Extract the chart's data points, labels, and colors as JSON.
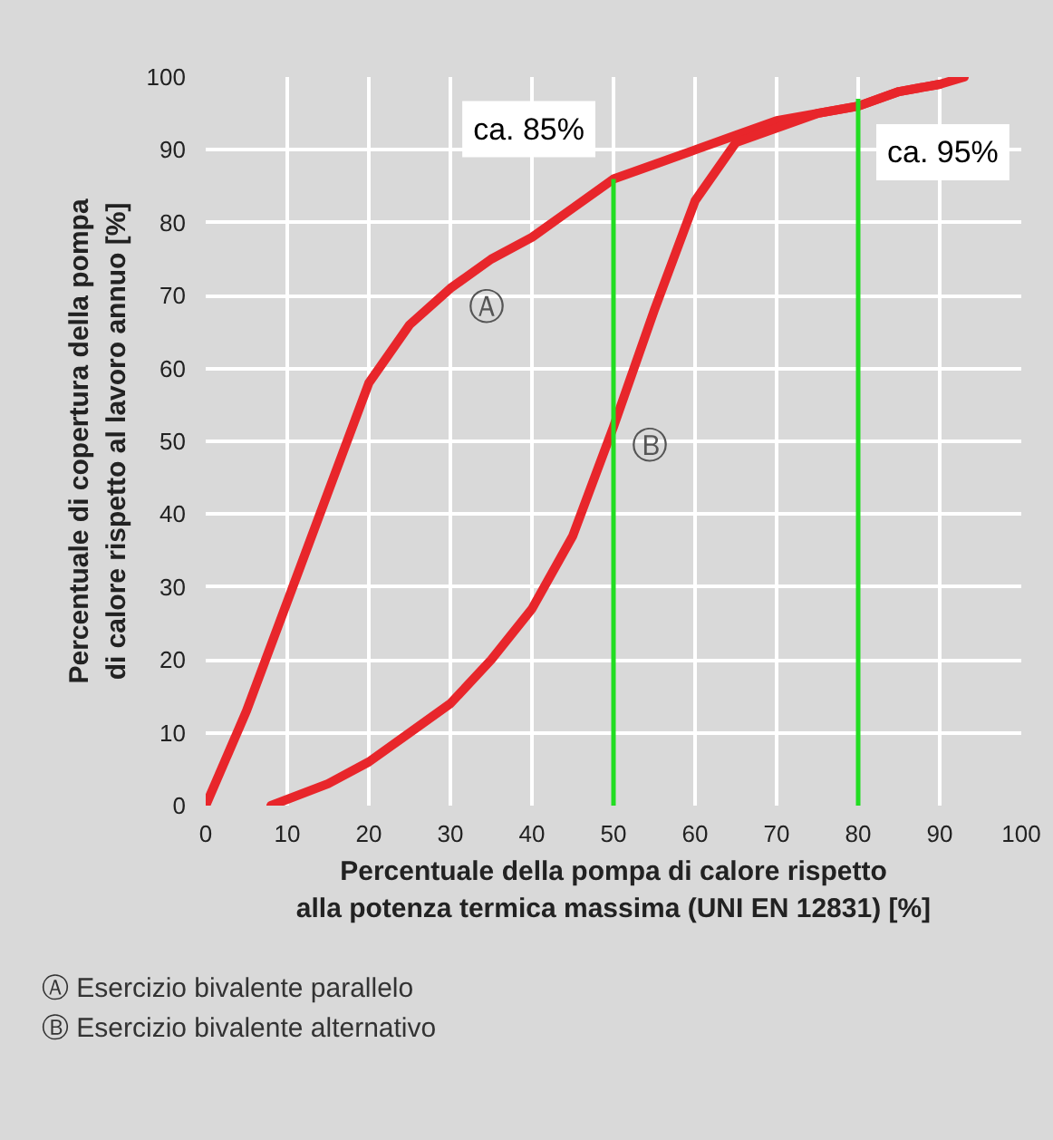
{
  "chart_data": {
    "type": "line",
    "xlabel": "Percentuale della pompa di calore rispetto\nalla potenza termica massima (UNI EN 12831) [%]",
    "ylabel": "Percentuale di copertura della pompa\ndi calore rispetto al lavoro annuo [%]",
    "xlim": [
      0,
      100
    ],
    "ylim": [
      0,
      100
    ],
    "xticks": [
      0,
      10,
      20,
      30,
      40,
      50,
      60,
      70,
      80,
      90,
      100
    ],
    "yticks": [
      0,
      10,
      20,
      30,
      40,
      50,
      60,
      70,
      80,
      90,
      100
    ],
    "grid": true,
    "line_style": "solid",
    "series": [
      {
        "color": "#e8262b",
        "x": [
          0,
          5,
          10,
          15,
          20,
          25,
          30,
          35,
          40,
          45,
          50,
          55,
          60,
          65,
          70,
          75,
          80,
          85,
          90,
          93
        ],
        "values": [
          0,
          13,
          28,
          43,
          58,
          66,
          71,
          75,
          78,
          82,
          86,
          88,
          90,
          92,
          94,
          95,
          96,
          98,
          99,
          100
        ]
      },
      {
        "color": "#e8262b",
        "x": [
          8,
          15,
          20,
          25,
          30,
          35,
          40,
          45,
          50,
          55,
          60,
          65,
          70,
          75,
          80,
          85,
          90
        ],
        "values": [
          0,
          3,
          6,
          10,
          14,
          20,
          27,
          37,
          52,
          68,
          83,
          91,
          93,
          95,
          96,
          98,
          99
        ]
      }
    ],
    "annotations": [
      {
        "text": "ca. 85%",
        "x": 50,
        "y": 86
      },
      {
        "text": "ca. 95%",
        "x": 80,
        "y": 97
      },
      {
        "text": "Ⓐ",
        "x": 30,
        "y": 71
      },
      {
        "text": "Ⓑ",
        "x": 50,
        "y": 52
      },
      "Ⓐ  Esercizio bivalente parallelo",
      "Ⓑ  Esercizio bivalente alternativo"
    ]
  }
}
